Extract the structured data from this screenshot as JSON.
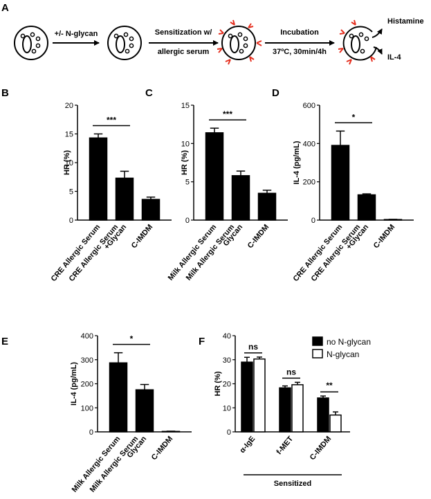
{
  "panels": {
    "A": "A",
    "B": "B",
    "C": "C",
    "D": "D",
    "E": "E",
    "F": "F"
  },
  "schematic": {
    "step1": "+/- N-glycan",
    "step2_line1": "Sensitization w/",
    "step2_line2": "allergic serum",
    "step3_line1": "Incubation",
    "step3_line2": "37ºC, 30min/4h",
    "out1": "Histamine",
    "out2": "IL-4"
  },
  "chart_data": [
    {
      "id": "B",
      "type": "bar",
      "ylabel": "HR (%)",
      "ylim": [
        0,
        20
      ],
      "yticks": [
        0,
        5,
        10,
        15,
        20
      ],
      "categories": [
        [
          "CRE Allergic Serum"
        ],
        [
          "CRE Allergic Serum",
          "+Glycan"
        ],
        [
          "C-IMDM"
        ]
      ],
      "values": [
        14.3,
        7.3,
        3.6
      ],
      "errors": [
        0.7,
        1.2,
        0.4
      ],
      "significance": {
        "label": "***",
        "between": [
          0,
          1
        ]
      }
    },
    {
      "id": "C",
      "type": "bar",
      "ylabel": "HR (%)",
      "ylim": [
        0,
        15
      ],
      "yticks": [
        0,
        5,
        10,
        15
      ],
      "categories": [
        [
          "Milk Allergic Serum"
        ],
        [
          "Milk Allergic Serum",
          "Glycan"
        ],
        [
          "C-IMDM"
        ]
      ],
      "values": [
        11.4,
        5.8,
        3.5
      ],
      "errors": [
        0.6,
        0.6,
        0.4
      ],
      "significance": {
        "label": "***",
        "between": [
          0,
          1
        ]
      }
    },
    {
      "id": "D",
      "type": "bar",
      "ylabel": "IL-4 (pg/mL)",
      "ylim": [
        0,
        600
      ],
      "yticks": [
        0,
        200,
        400,
        600
      ],
      "categories": [
        [
          "CRE Allergic Serum"
        ],
        [
          "CRE Allergic Serum",
          "+Glycan"
        ],
        [
          "C-IMDM"
        ]
      ],
      "values": [
        390,
        132,
        3
      ],
      "errors": [
        75,
        5,
        1
      ],
      "significance": {
        "label": "*",
        "between": [
          0,
          1
        ]
      }
    },
    {
      "id": "E",
      "type": "bar",
      "ylabel": "IL-4 (pg/mL)",
      "ylim": [
        0,
        400
      ],
      "yticks": [
        0,
        100,
        200,
        300,
        400
      ],
      "categories": [
        [
          "Milk Allergic Serum"
        ],
        [
          "Milk Allergic Serum",
          "Glycan"
        ],
        [
          "C-IMDM"
        ]
      ],
      "values": [
        287,
        175,
        2
      ],
      "errors": [
        42,
        22,
        1
      ],
      "significance": {
        "label": "*",
        "between": [
          0,
          1
        ]
      }
    },
    {
      "id": "F",
      "type": "bar",
      "ylabel": "HR (%)",
      "ylim": [
        0,
        40
      ],
      "yticks": [
        0,
        10,
        20,
        30,
        40
      ],
      "categories": [
        [
          "α-IgE"
        ],
        [
          "f-MET"
        ],
        [
          "C-IMDM"
        ]
      ],
      "series": [
        {
          "name": "no N-glycan",
          "values": [
            29,
            18.3,
            14.1
          ],
          "errors": [
            2.0,
            0.8,
            0.8
          ]
        },
        {
          "name": "N-glycan",
          "values": [
            30.3,
            19.6,
            7.0
          ],
          "errors": [
            0.8,
            1.0,
            1.3
          ]
        }
      ],
      "significance": [
        {
          "label": "ns",
          "group": 0
        },
        {
          "label": "ns",
          "group": 1
        },
        {
          "label": "**",
          "group": 2
        }
      ],
      "group_label": "Sensitized"
    }
  ]
}
